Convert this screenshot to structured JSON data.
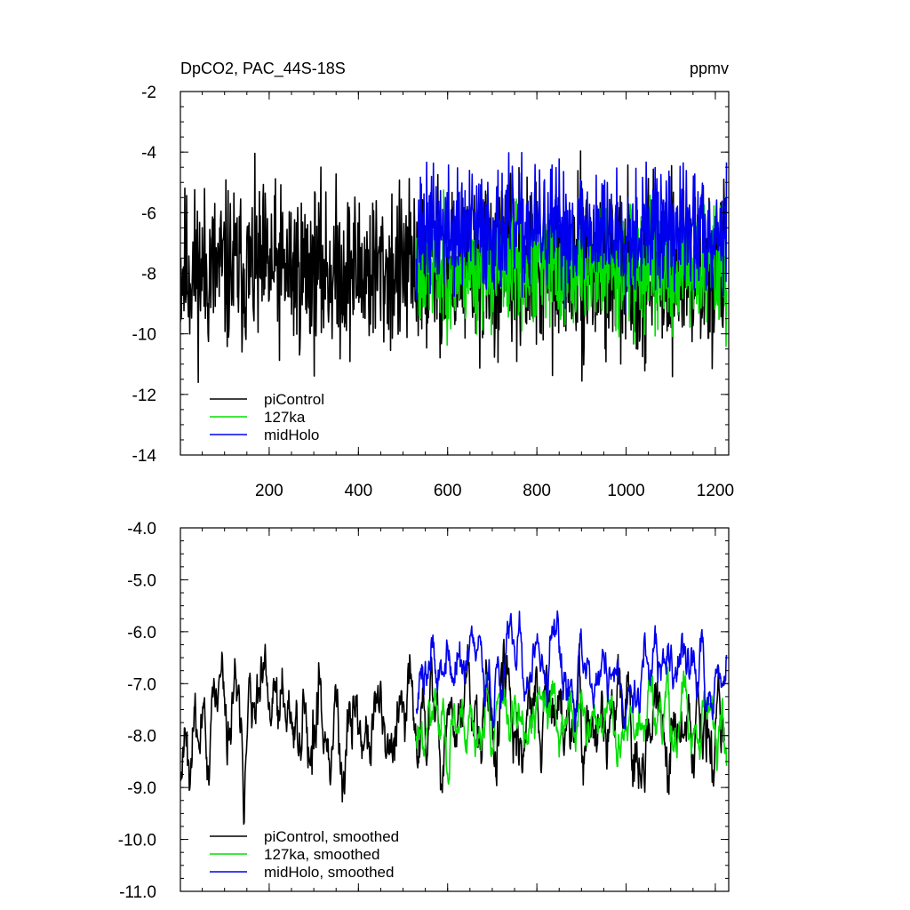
{
  "chart_data": [
    {
      "type": "line",
      "title": "DpCO2, PAC_44S-18S",
      "units_label": "ppmv",
      "xlim": [
        1,
        1230
      ],
      "ylim": [
        -14,
        -2
      ],
      "yticks": [
        -2,
        -4,
        -6,
        -8,
        -10,
        -12,
        -14
      ],
      "ytick_labels": [
        "-2",
        "-4",
        "-6",
        "-8",
        "-10",
        "-12",
        "-14"
      ],
      "xticks": [
        200,
        400,
        600,
        800,
        1000,
        1200
      ],
      "xtick_labels": [
        "200",
        "400",
        "600",
        "800",
        "1000",
        "1200"
      ],
      "legend_position": "bottom-left",
      "series": [
        {
          "name": "piControl",
          "color": "#000000",
          "x_start": 1,
          "x_end": 1220,
          "mean": -7.9,
          "amplitude": 1.35,
          "seed": 11,
          "smooth": 1
        },
        {
          "name": "127ka",
          "color": "#00e000",
          "x_start": 530,
          "x_end": 1225,
          "mean": -7.9,
          "amplitude": 0.95,
          "seed": 23,
          "smooth": 1
        },
        {
          "name": "midHolo",
          "color": "#0000ee",
          "x_start": 530,
          "x_end": 1225,
          "mean": -6.6,
          "amplitude": 1.0,
          "seed": 37,
          "smooth": 1
        }
      ]
    },
    {
      "type": "line",
      "xlim": [
        1,
        1230
      ],
      "ylim": [
        -11,
        -4
      ],
      "yticks": [
        -4,
        -5,
        -6,
        -7,
        -8,
        -9,
        -10,
        -11
      ],
      "ytick_labels": [
        "-4.0",
        "-5.0",
        "-6.0",
        "-7.0",
        "-8.0",
        "-9.0",
        "-10.0",
        "-11.0"
      ],
      "xticks": [
        200,
        400,
        600,
        800,
        1000,
        1200
      ],
      "legend_position": "bottom-left",
      "series": [
        {
          "name": "piControl, smoothed",
          "color": "#000000",
          "x_start": 1,
          "x_end": 1220,
          "mean": -7.8,
          "amplitude": 1.1,
          "seed": 11,
          "smooth": 5
        },
        {
          "name": "127ka, smoothed",
          "color": "#00e000",
          "x_start": 530,
          "x_end": 1225,
          "mean": -7.7,
          "amplitude": 0.7,
          "seed": 23,
          "smooth": 5
        },
        {
          "name": "midHolo, smoothed",
          "color": "#0000ee",
          "x_start": 530,
          "x_end": 1225,
          "mean": -6.7,
          "amplitude": 0.75,
          "seed": 37,
          "smooth": 5
        }
      ]
    }
  ]
}
